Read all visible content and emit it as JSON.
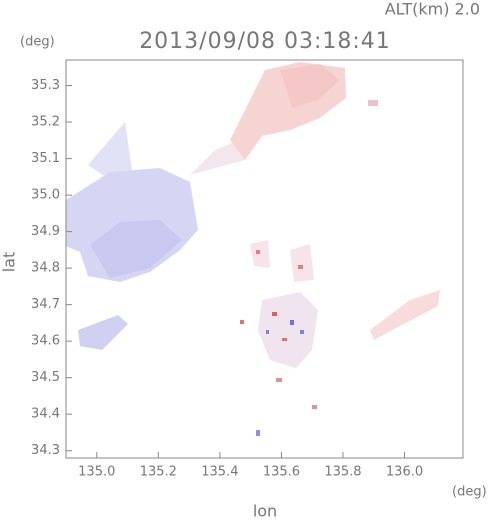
{
  "chart_data": {
    "type": "map",
    "subtitle": "ALT(km) 2.0",
    "title": "2013/09/08 03:18:41",
    "y_unit": "(deg)",
    "x_unit": "(deg)",
    "y_label": "lat",
    "x_label": "lon",
    "xlim": [
      134.9,
      136.19
    ],
    "ylim": [
      34.28,
      35.37
    ],
    "xticks": [
      {
        "value": 135,
        "label": "135.0"
      },
      135.2,
      135.4,
      135.6,
      135.8,
      {
        "value": 136,
        "label": "136.0"
      }
    ],
    "yticks": [
      34.3,
      34.4,
      34.5,
      34.6,
      34.7,
      34.8,
      34.9,
      {
        "value": 35,
        "label": "35.0"
      },
      35.1,
      35.2,
      35.3
    ]
  }
}
